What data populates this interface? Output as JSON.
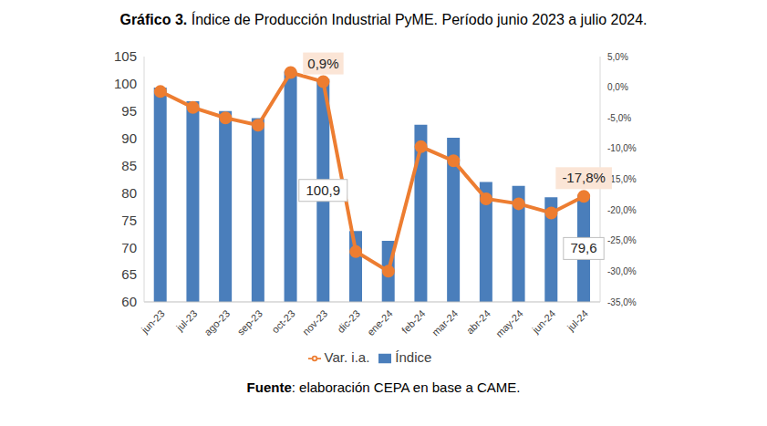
{
  "chart_data": {
    "type": "bar",
    "title": "Gráfico 3. Índice de Producción Industrial PyME. Período junio 2023 a julio 2024.",
    "source": "Fuente: elaboración CEPA en base a CAME.",
    "categories": [
      "jun-23",
      "jul-23",
      "ago-23",
      "sep-23",
      "oct-23",
      "nov-23",
      "dic-23",
      "ene-24",
      "feb-24",
      "mar-24",
      "abr-24",
      "may-24",
      "jun-24",
      "jul-24"
    ],
    "series": [
      {
        "name": "Índice",
        "type": "bar",
        "color": "#4a7ebb",
        "values": [
          99.3,
          96.8,
          95.0,
          93.7,
          102.3,
          100.9,
          73.0,
          71.2,
          92.5,
          90.1,
          82.0,
          81.3,
          79.2,
          79.6
        ]
      },
      {
        "name": "Var. i.a.",
        "type": "line",
        "axis": "y2",
        "color": "#ed7d31",
        "marker": "circle",
        "values": [
          -0.7,
          -3.3,
          -5.0,
          -6.2,
          2.4,
          0.9,
          -26.8,
          -30.0,
          -9.7,
          -12.0,
          -18.2,
          -19.0,
          -20.5,
          -17.8
        ]
      }
    ],
    "ylim": [
      60,
      105
    ],
    "yticks": [
      60,
      65,
      70,
      75,
      80,
      85,
      90,
      95,
      100,
      105
    ],
    "y2lim": [
      -35,
      5
    ],
    "y2ticks": [
      {
        "value": -35,
        "label": "-35,0%"
      },
      {
        "value": -30,
        "label": "-30,0%"
      },
      {
        "value": -25,
        "label": "-25,0%"
      },
      {
        "value": -20,
        "label": "-20,0%"
      },
      {
        "value": -15,
        "label": "-15,0%"
      },
      {
        "value": -10,
        "label": "-10,0%"
      },
      {
        "value": -5,
        "label": "-5,0%"
      },
      {
        "value": 0,
        "label": "0,0%"
      },
      {
        "value": 5,
        "label": "5,0%"
      }
    ],
    "grid": false,
    "legend": "bottom",
    "annotations": [
      {
        "series": "Índice",
        "category": "nov-23",
        "text": "100,9"
      },
      {
        "series": "Índice",
        "category": "jul-24",
        "text": "79,6"
      },
      {
        "series": "Var. i.a.",
        "category": "nov-23",
        "text": "0,9%"
      },
      {
        "series": "Var. i.a.",
        "category": "jul-24",
        "text": "-17,8%"
      }
    ]
  }
}
